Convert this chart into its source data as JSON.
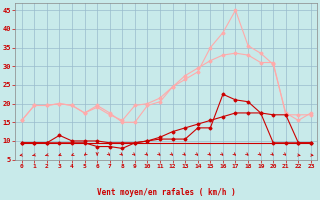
{
  "x": [
    0,
    1,
    2,
    3,
    4,
    5,
    6,
    7,
    8,
    9,
    10,
    11,
    12,
    13,
    14,
    15,
    16,
    17,
    18,
    19,
    20,
    21,
    22,
    23
  ],
  "line_flat": [
    9.5,
    9.5,
    9.5,
    9.5,
    9.5,
    9.5,
    9.5,
    9.5,
    9.5,
    9.5,
    9.5,
    9.5,
    9.5,
    9.5,
    9.5,
    9.5,
    9.5,
    9.5,
    9.5,
    9.5,
    9.5,
    9.5,
    9.5,
    9.5
  ],
  "line_dark_wiggly": [
    9.5,
    9.5,
    9.5,
    9.5,
    9.5,
    9.5,
    8.5,
    8.5,
    8.0,
    9.5,
    10.0,
    10.5,
    10.5,
    10.5,
    13.5,
    13.5,
    22.5,
    21.0,
    20.5,
    17.5,
    9.5,
    9.5,
    9.5,
    9.5
  ],
  "line_dark_rising": [
    9.5,
    9.5,
    9.5,
    11.5,
    10.0,
    10.0,
    10.0,
    9.5,
    9.5,
    9.5,
    10.0,
    11.0,
    12.5,
    13.5,
    14.5,
    15.5,
    16.5,
    17.5,
    17.5,
    17.5,
    17.0,
    17.0,
    9.5,
    9.5
  ],
  "line_light_spike": [
    15.5,
    19.5,
    19.5,
    20.0,
    19.5,
    17.5,
    19.5,
    17.5,
    15.0,
    15.0,
    19.5,
    20.5,
    24.5,
    26.5,
    28.5,
    35.0,
    39.0,
    45.0,
    35.5,
    33.5,
    30.5,
    17.5,
    15.5,
    17.5
  ],
  "line_light_smooth": [
    15.5,
    19.5,
    19.5,
    20.0,
    19.5,
    17.5,
    19.0,
    17.0,
    15.5,
    19.5,
    20.0,
    21.5,
    24.5,
    27.5,
    29.5,
    31.5,
    33.0,
    33.5,
    33.0,
    31.0,
    31.0,
    17.0,
    17.0,
    17.0
  ],
  "arrow_angles": [
    -135,
    -125,
    -120,
    -115,
    -110,
    -100,
    -90,
    -80,
    -80,
    -80,
    -80,
    -80,
    -80,
    -80,
    -80,
    -80,
    -80,
    -80,
    -80,
    -80,
    -80,
    -80,
    -45,
    -30
  ],
  "bg_color": "#c8eaea",
  "grid_color": "#99bbcc",
  "line_flat_color": "#cc0000",
  "line_dark_wiggly_color": "#cc0000",
  "line_dark_rising_color": "#cc0000",
  "line_light_spike_color": "#ffaaaa",
  "line_light_smooth_color": "#ffaaaa",
  "arrow_color": "#cc0000",
  "xlabel": "Vent moyen/en rafales ( km/h )",
  "xlabel_color": "#cc0000",
  "tick_color": "#cc0000",
  "ylim": [
    5,
    47
  ],
  "xlim": [
    -0.5,
    23.5
  ],
  "yticks": [
    5,
    10,
    15,
    20,
    25,
    30,
    35,
    40,
    45
  ],
  "xticks": [
    0,
    1,
    2,
    3,
    4,
    5,
    6,
    7,
    8,
    9,
    10,
    11,
    12,
    13,
    14,
    15,
    16,
    17,
    18,
    19,
    20,
    21,
    22,
    23
  ]
}
